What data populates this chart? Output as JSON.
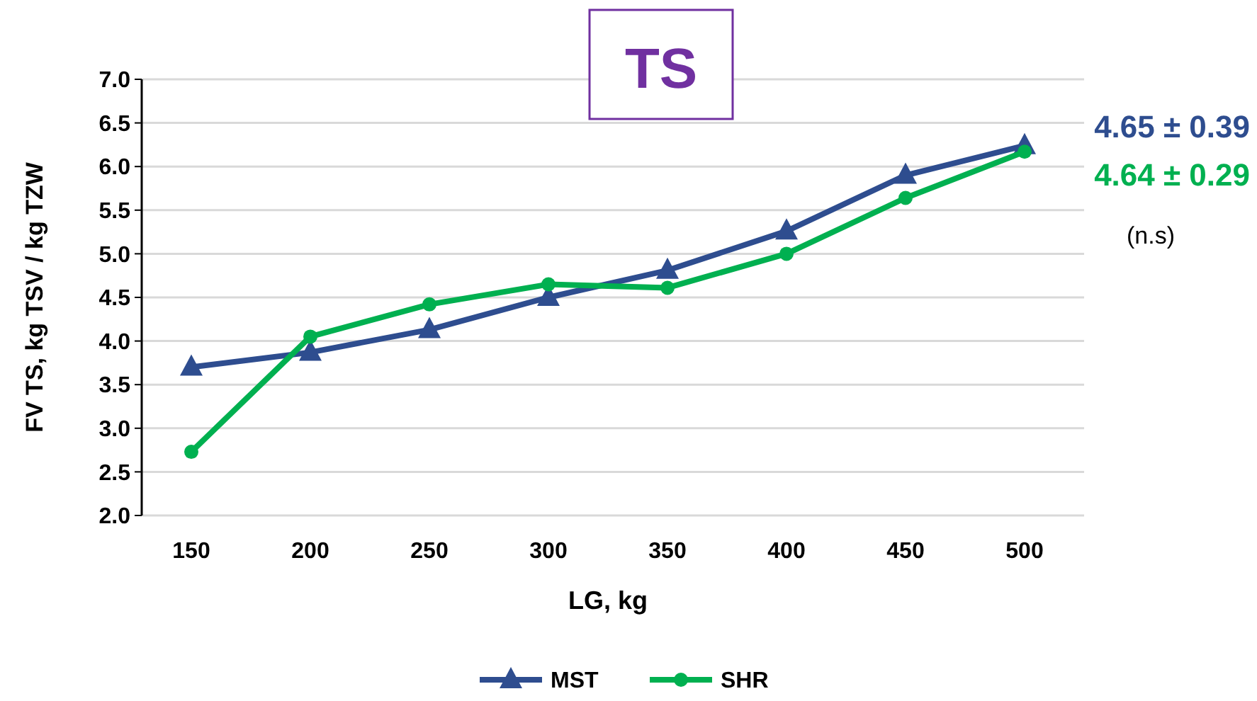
{
  "chart_data": {
    "type": "line",
    "title": "TS",
    "xlabel": "LG, kg",
    "ylabel": "FV TS, kg TSV / kg TZW",
    "categories": [
      "150",
      "200",
      "250",
      "300",
      "350",
      "400",
      "450",
      "500"
    ],
    "series": [
      {
        "name": "MST",
        "color": "#2e4d8f",
        "marker": "triangle",
        "values": [
          3.7,
          3.87,
          4.13,
          4.5,
          4.81,
          5.26,
          5.9,
          6.24
        ]
      },
      {
        "name": "SHR",
        "color": "#00b050",
        "marker": "circle",
        "values": [
          2.73,
          4.05,
          4.42,
          4.65,
          4.61,
          5.0,
          5.64,
          6.17
        ]
      }
    ],
    "ylim": [
      2.0,
      7.0
    ],
    "yticks": [
      {
        "value": 2,
        "label": "2.0"
      },
      {
        "value": 2.5,
        "label": "2.5"
      },
      {
        "value": 3,
        "label": "3.0"
      },
      {
        "value": 3.5,
        "label": "3.5"
      },
      {
        "value": 4,
        "label": "4.0"
      },
      {
        "value": 4.5,
        "label": "4.5"
      },
      {
        "value": 5,
        "label": "5.0"
      },
      {
        "value": 5.5,
        "label": "5.5"
      },
      {
        "value": 6,
        "label": "6.0"
      },
      {
        "value": 6.5,
        "label": "6.5"
      },
      {
        "value": 7,
        "label": "7.0"
      }
    ],
    "grid": "y",
    "legend": "bottom",
    "line_style": "solid",
    "annotations": [
      "4.65 ± 0.39",
      "4.64 ± 0.29",
      "(n.s)"
    ]
  }
}
